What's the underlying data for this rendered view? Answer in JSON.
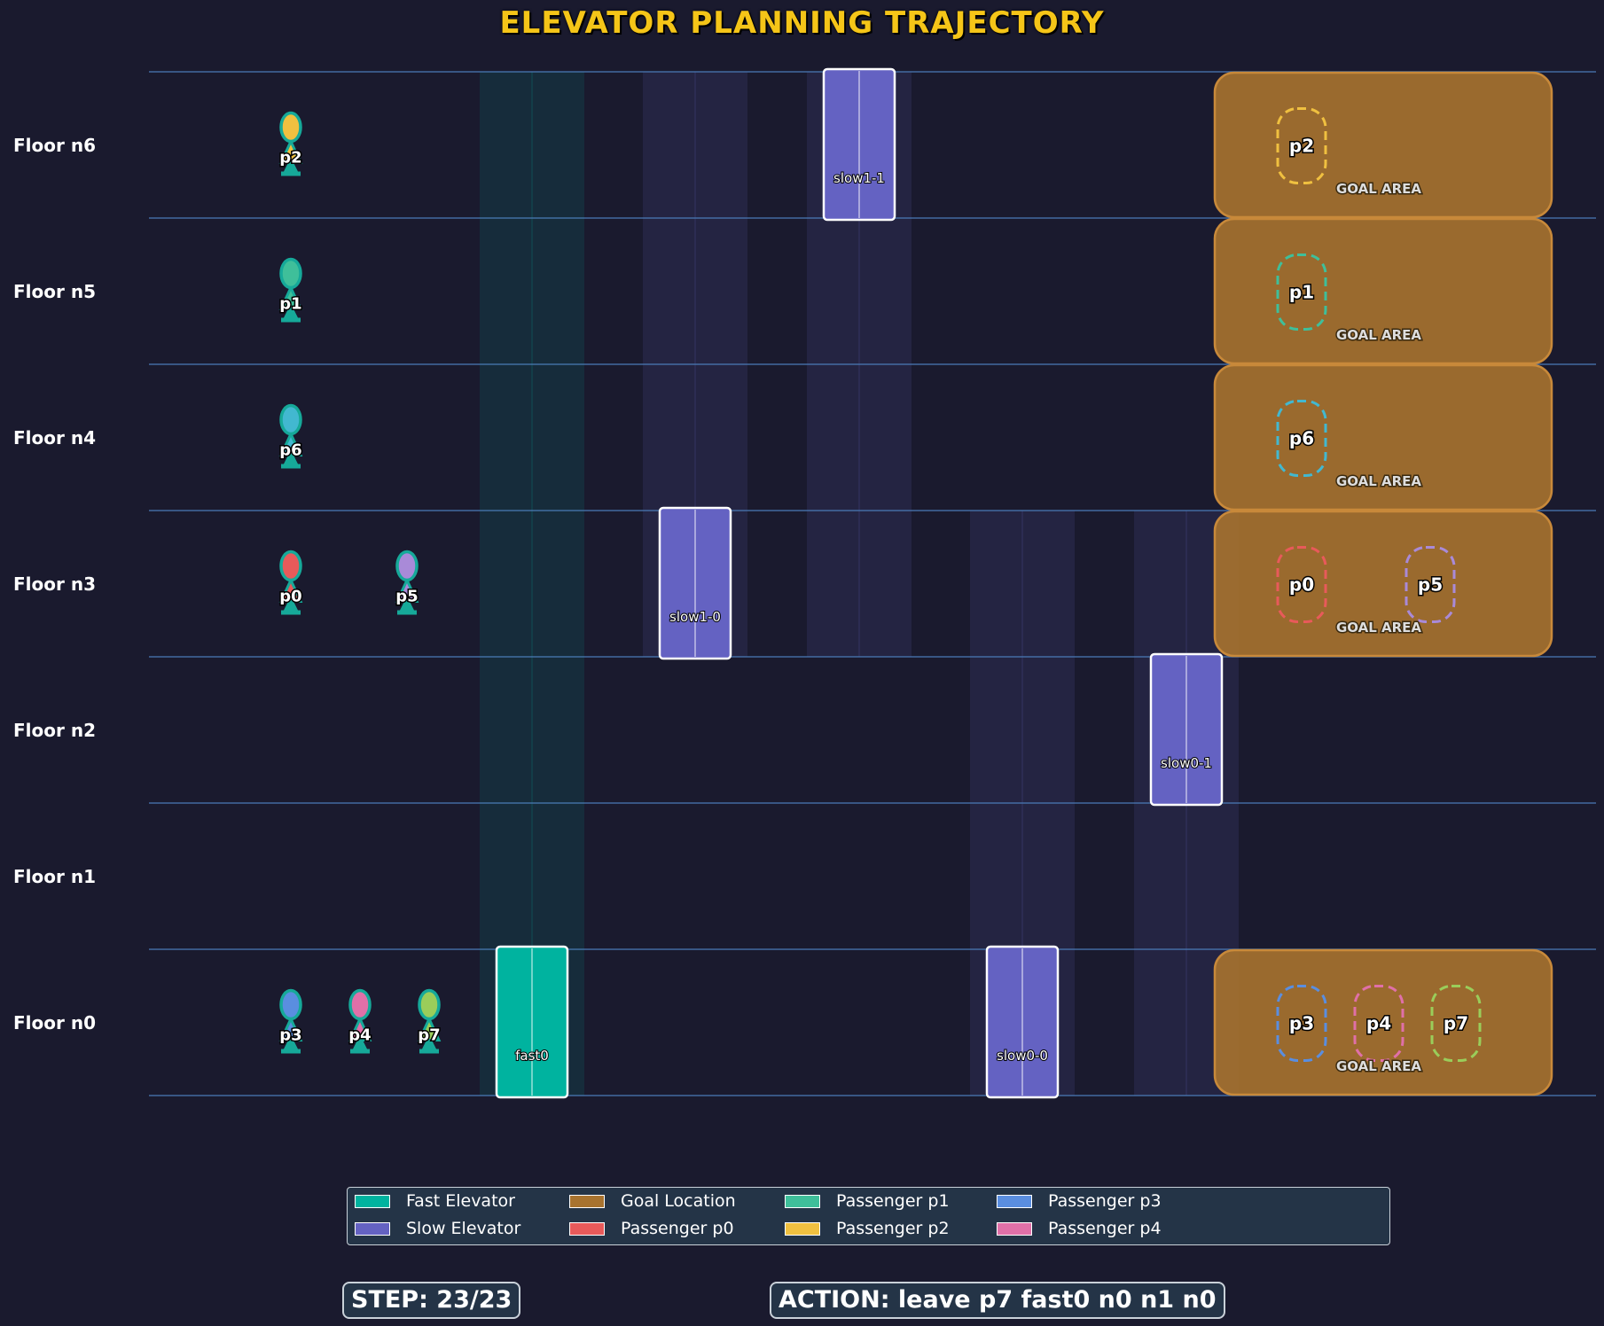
{
  "title": "ELEVATOR PLANNING TRAJECTORY",
  "colors": {
    "background": "#1a1a2e",
    "floor_line": "#4a7ab5",
    "fast_elevator": "#00b39f",
    "slow_elevator": "#6462c2",
    "goal": "#a8732f",
    "title": "#f5c518"
  },
  "floors": [
    "n6",
    "n5",
    "n4",
    "n3",
    "n2",
    "n1",
    "n0"
  ],
  "floor_labels": {
    "n6": "Floor n6",
    "n5": "Floor n5",
    "n4": "Floor n4",
    "n3": "Floor n3",
    "n2": "Floor n2",
    "n1": "Floor n1",
    "n0": "Floor n0"
  },
  "elevators": [
    {
      "id": "fast0",
      "label": "fast0",
      "kind": "fast",
      "floor": "n0"
    },
    {
      "id": "slow1-0",
      "label": "slow1-0",
      "kind": "slow",
      "floor": "n3"
    },
    {
      "id": "slow1-1",
      "label": "slow1-1",
      "kind": "slow",
      "floor": "n6"
    },
    {
      "id": "slow0-0",
      "label": "slow0-0",
      "kind": "slow",
      "floor": "n0"
    },
    {
      "id": "slow0-1",
      "label": "slow0-1",
      "kind": "slow",
      "floor": "n2"
    }
  ],
  "passengers": [
    {
      "id": "p2",
      "label": "p2",
      "floor": "n6",
      "color": "#f0c040"
    },
    {
      "id": "p1",
      "label": "p1",
      "floor": "n5",
      "color": "#3fbf9a"
    },
    {
      "id": "p6",
      "label": "p6",
      "floor": "n4",
      "color": "#42b8d0"
    },
    {
      "id": "p0",
      "label": "p0",
      "floor": "n3",
      "color": "#e85a5a"
    },
    {
      "id": "p5",
      "label": "p5",
      "floor": "n3",
      "color": "#a98ad8"
    },
    {
      "id": "p3",
      "label": "p3",
      "floor": "n0",
      "color": "#5a8ee0"
    },
    {
      "id": "p4",
      "label": "p4",
      "floor": "n0",
      "color": "#e070a8"
    },
    {
      "id": "p7",
      "label": "p7",
      "floor": "n0",
      "color": "#9acd5a"
    }
  ],
  "goal_areas": [
    {
      "floor": "n6",
      "label": "GOAL AREA",
      "targets": [
        {
          "label": "p2",
          "color": "#f0c040"
        }
      ]
    },
    {
      "floor": "n5",
      "label": "GOAL AREA",
      "targets": [
        {
          "label": "p1",
          "color": "#3fbf9a"
        }
      ]
    },
    {
      "floor": "n4",
      "label": "GOAL AREA",
      "targets": [
        {
          "label": "p6",
          "color": "#42b8d0"
        }
      ]
    },
    {
      "floor": "n3",
      "label": "GOAL AREA",
      "targets": [
        {
          "label": "p0",
          "color": "#e85a5a"
        },
        {
          "label": "p5",
          "color": "#a98ad8"
        }
      ]
    },
    {
      "floor": "n0",
      "label": "GOAL AREA",
      "targets": [
        {
          "label": "p3",
          "color": "#5a8ee0"
        },
        {
          "label": "p4",
          "color": "#e070a8"
        },
        {
          "label": "p7",
          "color": "#9acd5a"
        }
      ]
    }
  ],
  "legend": [
    {
      "label": "Fast Elevator",
      "color": "#00b39f"
    },
    {
      "label": "Slow Elevator",
      "color": "#6462c2"
    },
    {
      "label": "Goal Location",
      "color": "#a8732f"
    },
    {
      "label": "Passenger p0",
      "color": "#e85a5a"
    },
    {
      "label": "Passenger p1",
      "color": "#3fbf9a"
    },
    {
      "label": "Passenger p2",
      "color": "#f0c040"
    },
    {
      "label": "Passenger p3",
      "color": "#5a8ee0"
    },
    {
      "label": "Passenger p4",
      "color": "#e070a8"
    }
  ],
  "status": {
    "step": "STEP: 23/23",
    "action": "ACTION: leave p7 fast0 n0 n1 n0"
  }
}
